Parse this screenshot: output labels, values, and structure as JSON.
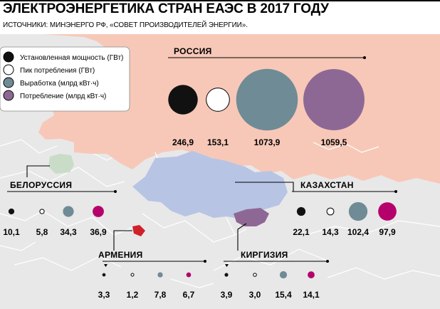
{
  "title": "ЭЛЕКТРОЭНЕРГЕТИКА СТРАН ЕАЭС В 2017 ГОДУ",
  "subtitle": "ИСТОЧНИКИ: МИНЭНЕРГО РФ, «СОВЕТ ПРОИЗВОДИТЕЛЕЙ ЭНЕРГИИ».",
  "colors": {
    "installed_capacity": "#111111",
    "peak_consumption": "#ffffff",
    "generation": "#6f8b96",
    "consumption_russia": "#8e6895",
    "consumption": "#b5006b",
    "map_russia": "#f7c8b8",
    "map_kazakhstan": "#b8c4e4",
    "map_kyrgyzstan": "#8e6895",
    "map_belarus": "#c8dcc8",
    "map_armenia": "#d0202a",
    "map_background": "#e8e8e8"
  },
  "chart_data": {
    "type": "bubble",
    "title": "ЭЛЕКТРОЭНЕРГЕТИКА СТРАН ЕАЭС В 2017 ГОДУ",
    "legend_position": "top-left",
    "legend": [
      {
        "key": "installed_capacity",
        "label": "Установленная мощность (ГВт)"
      },
      {
        "key": "peak_consumption",
        "label": "Пик потребления (ГВт)"
      },
      {
        "key": "generation",
        "label": "Выработка (млрд кВт·ч)"
      },
      {
        "key": "consumption",
        "label": "Потребление (млрд кВт·ч)"
      }
    ],
    "countries": [
      {
        "name": "РОССИЯ",
        "values": [
          246.9,
          153.1,
          1073.9,
          1059.5
        ],
        "labels": [
          "246,9",
          "153,1",
          "1073,9",
          "1059,5"
        ]
      },
      {
        "name": "БЕЛОРУССИЯ",
        "values": [
          10.1,
          5.8,
          34.3,
          36.9
        ],
        "labels": [
          "10,1",
          "5,8",
          "34,3",
          "36,9"
        ]
      },
      {
        "name": "КАЗАХСТАН",
        "values": [
          22.1,
          14.3,
          102.4,
          97.9
        ],
        "labels": [
          "22,1",
          "14,3",
          "102,4",
          "97,9"
        ]
      },
      {
        "name": "АРМЕНИЯ",
        "values": [
          3.3,
          1.2,
          7.8,
          6.7
        ],
        "labels": [
          "3,3",
          "1,2",
          "7,8",
          "6,7"
        ]
      },
      {
        "name": "КИРГИЗИЯ",
        "values": [
          3.9,
          3.0,
          15.4,
          14.1
        ],
        "labels": [
          "3,9",
          "3,0",
          "15,4",
          "14,1"
        ]
      }
    ]
  }
}
